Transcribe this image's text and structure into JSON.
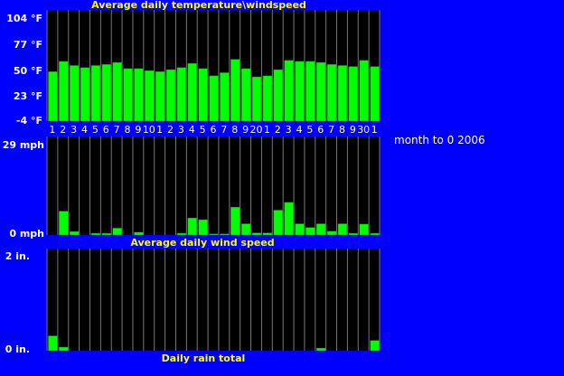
{
  "caption": "month to 0 2006",
  "x_tick_labels": [
    "1",
    "2",
    "3",
    "4",
    "5",
    "6",
    "7",
    "8",
    "9",
    "10",
    "1",
    "2",
    "3",
    "4",
    "5",
    "6",
    "7",
    "8",
    "9",
    "20",
    "1",
    "2",
    "3",
    "4",
    "5",
    "6",
    "7",
    "8",
    "9",
    "30",
    "1"
  ],
  "colors": {
    "background": "#0000ff",
    "panel": "#000000",
    "bar": "#00ff00",
    "bar_edge": "#00a000",
    "grid": "#777777",
    "title_text": "#ffff00",
    "axis_text": "#ffffff"
  },
  "chart_data": [
    {
      "type": "bar",
      "title": "Average daily temperature\\windspeed",
      "y_unit": "°F",
      "ylim": [
        -4,
        104
      ],
      "ytick_labels": [
        "104 °F",
        "77 °F",
        "50 °F",
        "23 °F",
        "-4 °F"
      ],
      "categories": [
        "1",
        "2",
        "3",
        "4",
        "5",
        "6",
        "7",
        "8",
        "9",
        "10",
        "1",
        "2",
        "3",
        "4",
        "5",
        "6",
        "7",
        "8",
        "9",
        "20",
        "1",
        "2",
        "3",
        "4",
        "5",
        "6",
        "7",
        "8",
        "9",
        "30",
        "1"
      ],
      "values": [
        44,
        54,
        50,
        48,
        50,
        51,
        53,
        47,
        47,
        45,
        44,
        46,
        48,
        52,
        47,
        40,
        43,
        56,
        47,
        39,
        40,
        46,
        55,
        54,
        54,
        53,
        51,
        50,
        49,
        55,
        49
      ],
      "grid": true
    },
    {
      "type": "bar",
      "title": "Average daily wind speed",
      "y_unit": "mph",
      "ylim": [
        0,
        29
      ],
      "ytick_labels": [
        "29 mph",
        "0 mph"
      ],
      "categories": [
        "1",
        "2",
        "3",
        "4",
        "5",
        "6",
        "7",
        "8",
        "9",
        "10",
        "1",
        "2",
        "3",
        "4",
        "5",
        "6",
        "7",
        "8",
        "9",
        "20",
        "1",
        "2",
        "3",
        "4",
        "5",
        "6",
        "7",
        "8",
        "9",
        "30",
        "1"
      ],
      "values": [
        0,
        7,
        1,
        0,
        0.5,
        0.5,
        2,
        0,
        0.8,
        0,
        0,
        0,
        0.5,
        5,
        4.5,
        0.3,
        0.3,
        8.2,
        3.3,
        0.6,
        0.6,
        7.3,
        9.6,
        3.3,
        2.2,
        3.3,
        1.1,
        3.3,
        0.5,
        3.2,
        0.5
      ],
      "grid": true
    },
    {
      "type": "bar",
      "title": "Daily rain total",
      "y_unit": "in.",
      "ylim": [
        0,
        2
      ],
      "ytick_labels": [
        "2 in.",
        "0 in."
      ],
      "categories": [
        "1",
        "2",
        "3",
        "4",
        "5",
        "6",
        "7",
        "8",
        "9",
        "10",
        "1",
        "2",
        "3",
        "4",
        "5",
        "6",
        "7",
        "8",
        "9",
        "20",
        "1",
        "2",
        "3",
        "4",
        "5",
        "6",
        "7",
        "8",
        "9",
        "30",
        "1"
      ],
      "values": [
        0.29,
        0.07,
        0,
        0,
        0,
        0,
        0,
        0,
        0,
        0,
        0,
        0,
        0,
        0,
        0,
        0,
        0,
        0,
        0,
        0,
        0,
        0,
        0,
        0,
        0,
        0.05,
        0,
        0,
        0,
        0,
        0.2
      ],
      "grid": true
    }
  ]
}
